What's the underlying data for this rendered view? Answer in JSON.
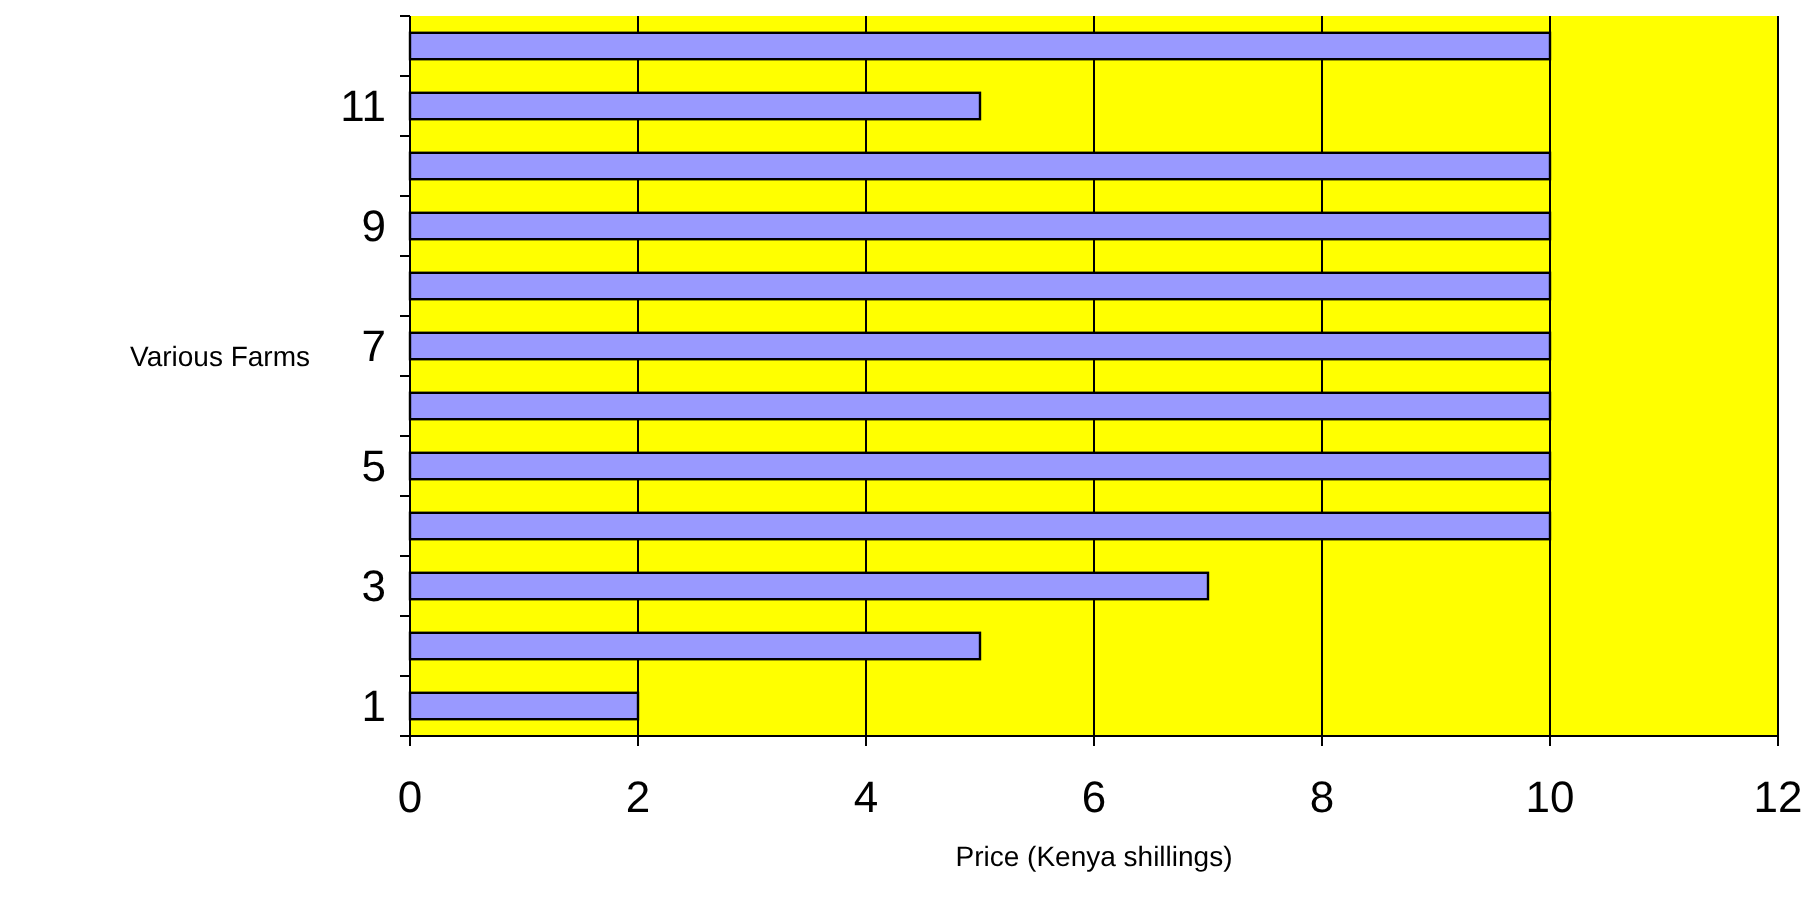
{
  "chart_data": {
    "type": "bar",
    "orientation": "horizontal",
    "xlabel": "Price (Kenya shillings)",
    "ylabel": "Various Farms",
    "categories": [
      null,
      "11",
      null,
      "9",
      null,
      "7",
      null,
      "5",
      null,
      "3",
      null,
      "1"
    ],
    "values": [
      10,
      5,
      10,
      10,
      10,
      10,
      10,
      10,
      10,
      7,
      5,
      2
    ],
    "color": "#9999ff",
    "xlim": [
      0,
      12
    ],
    "xticks": [
      0,
      2,
      4,
      6,
      8,
      10,
      12
    ],
    "grid": "x"
  }
}
